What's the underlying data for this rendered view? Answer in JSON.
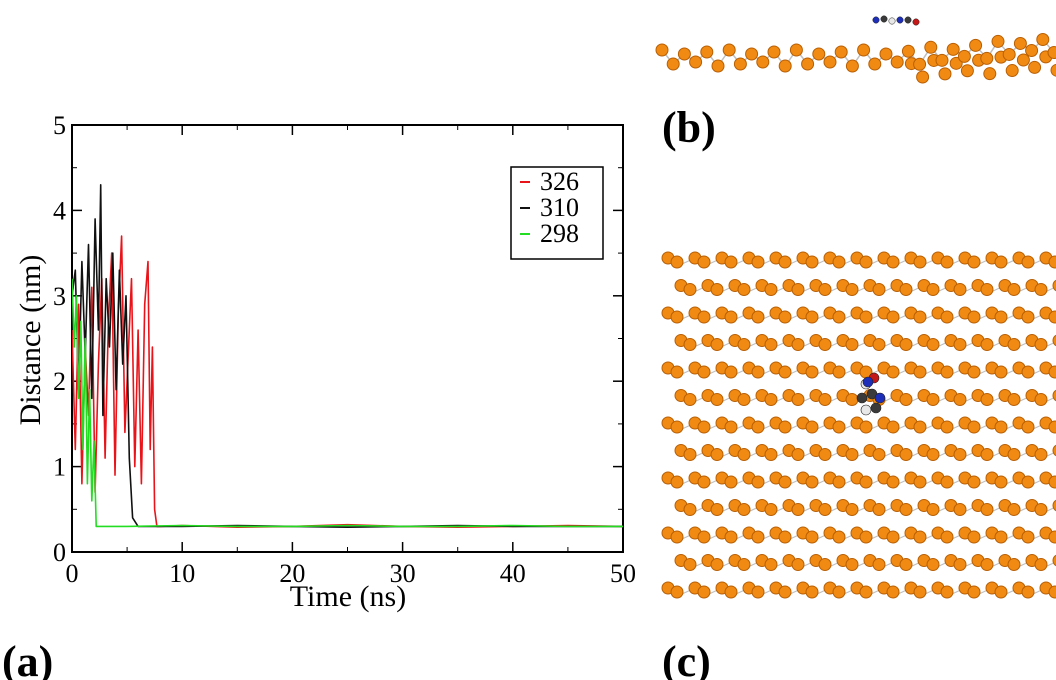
{
  "chart_data": {
    "type": "line",
    "xlabel": "Time (ns)",
    "ylabel": "Distance (nm)",
    "xlim": [
      0,
      50
    ],
    "ylim": [
      0,
      5
    ],
    "xticks": [
      "0",
      "10",
      "20",
      "30",
      "40",
      "50"
    ],
    "yticks": [
      "0",
      "1",
      "2",
      "3",
      "4",
      "5"
    ],
    "grid": false,
    "legend_position": "top-right",
    "series": [
      {
        "name": "326",
        "color": "#e8141a",
        "x": [
          0,
          0.3,
          0.6,
          0.9,
          1.2,
          1.5,
          1.8,
          2.1,
          2.4,
          2.7,
          3.0,
          3.3,
          3.6,
          3.9,
          4.2,
          4.5,
          4.8,
          5.1,
          5.4,
          5.7,
          6.0,
          6.3,
          6.6,
          6.9,
          7.1,
          7.3,
          7.5,
          7.7,
          8.0,
          10,
          15,
          20,
          25,
          30,
          35,
          40,
          45,
          50
        ],
        "y": [
          2.6,
          1.2,
          2.9,
          0.8,
          2.4,
          1.6,
          3.1,
          0.7,
          2.2,
          3.2,
          1.1,
          2.7,
          3.5,
          0.9,
          2.8,
          3.7,
          1.4,
          2.3,
          3.2,
          1.0,
          2.6,
          0.8,
          2.9,
          3.4,
          1.2,
          2.4,
          0.5,
          0.3,
          0.3,
          0.31,
          0.29,
          0.3,
          0.32,
          0.3,
          0.29,
          0.3,
          0.31,
          0.3
        ]
      },
      {
        "name": "310",
        "color": "#111111",
        "x": [
          0,
          0.3,
          0.6,
          0.9,
          1.2,
          1.5,
          1.8,
          2.1,
          2.4,
          2.6,
          2.8,
          3.1,
          3.4,
          3.7,
          4.0,
          4.3,
          4.6,
          4.9,
          5.2,
          5.5,
          6.0,
          10,
          15,
          20,
          25,
          30,
          35,
          40,
          45,
          50
        ],
        "y": [
          3.0,
          3.3,
          1.9,
          3.4,
          2.3,
          3.6,
          1.8,
          3.9,
          2.6,
          4.3,
          1.6,
          3.2,
          2.4,
          3.5,
          1.9,
          3.3,
          2.2,
          3.0,
          1.1,
          0.4,
          0.3,
          0.3,
          0.31,
          0.3,
          0.29,
          0.3,
          0.31,
          0.3,
          0.3,
          0.3
        ]
      },
      {
        "name": "298",
        "color": "#22dd22",
        "x": [
          0,
          0.2,
          0.4,
          0.6,
          0.8,
          1.0,
          1.2,
          1.4,
          1.6,
          1.8,
          2.0,
          2.2,
          2.5,
          5,
          10,
          15,
          20,
          25,
          30,
          35,
          40,
          45,
          50
        ],
        "y": [
          3.2,
          2.4,
          3.0,
          1.8,
          2.7,
          1.2,
          2.5,
          0.8,
          1.9,
          0.6,
          1.3,
          0.3,
          0.3,
          0.3,
          0.31,
          0.3,
          0.3,
          0.31,
          0.3,
          0.3,
          0.31,
          0.3,
          0.3
        ]
      }
    ]
  },
  "panels": {
    "a": "(a)",
    "b": "(b)",
    "c": "(c)"
  },
  "structure_colors": {
    "atom": "#f08a12",
    "atom_shadow": "#b85f05",
    "bond": "#bfbfbf",
    "molecule_dark": "#3a3a3a",
    "molecule_blue": "#1d2fb8",
    "molecule_red": "#c41818",
    "molecule_white": "#e8e8e8"
  }
}
